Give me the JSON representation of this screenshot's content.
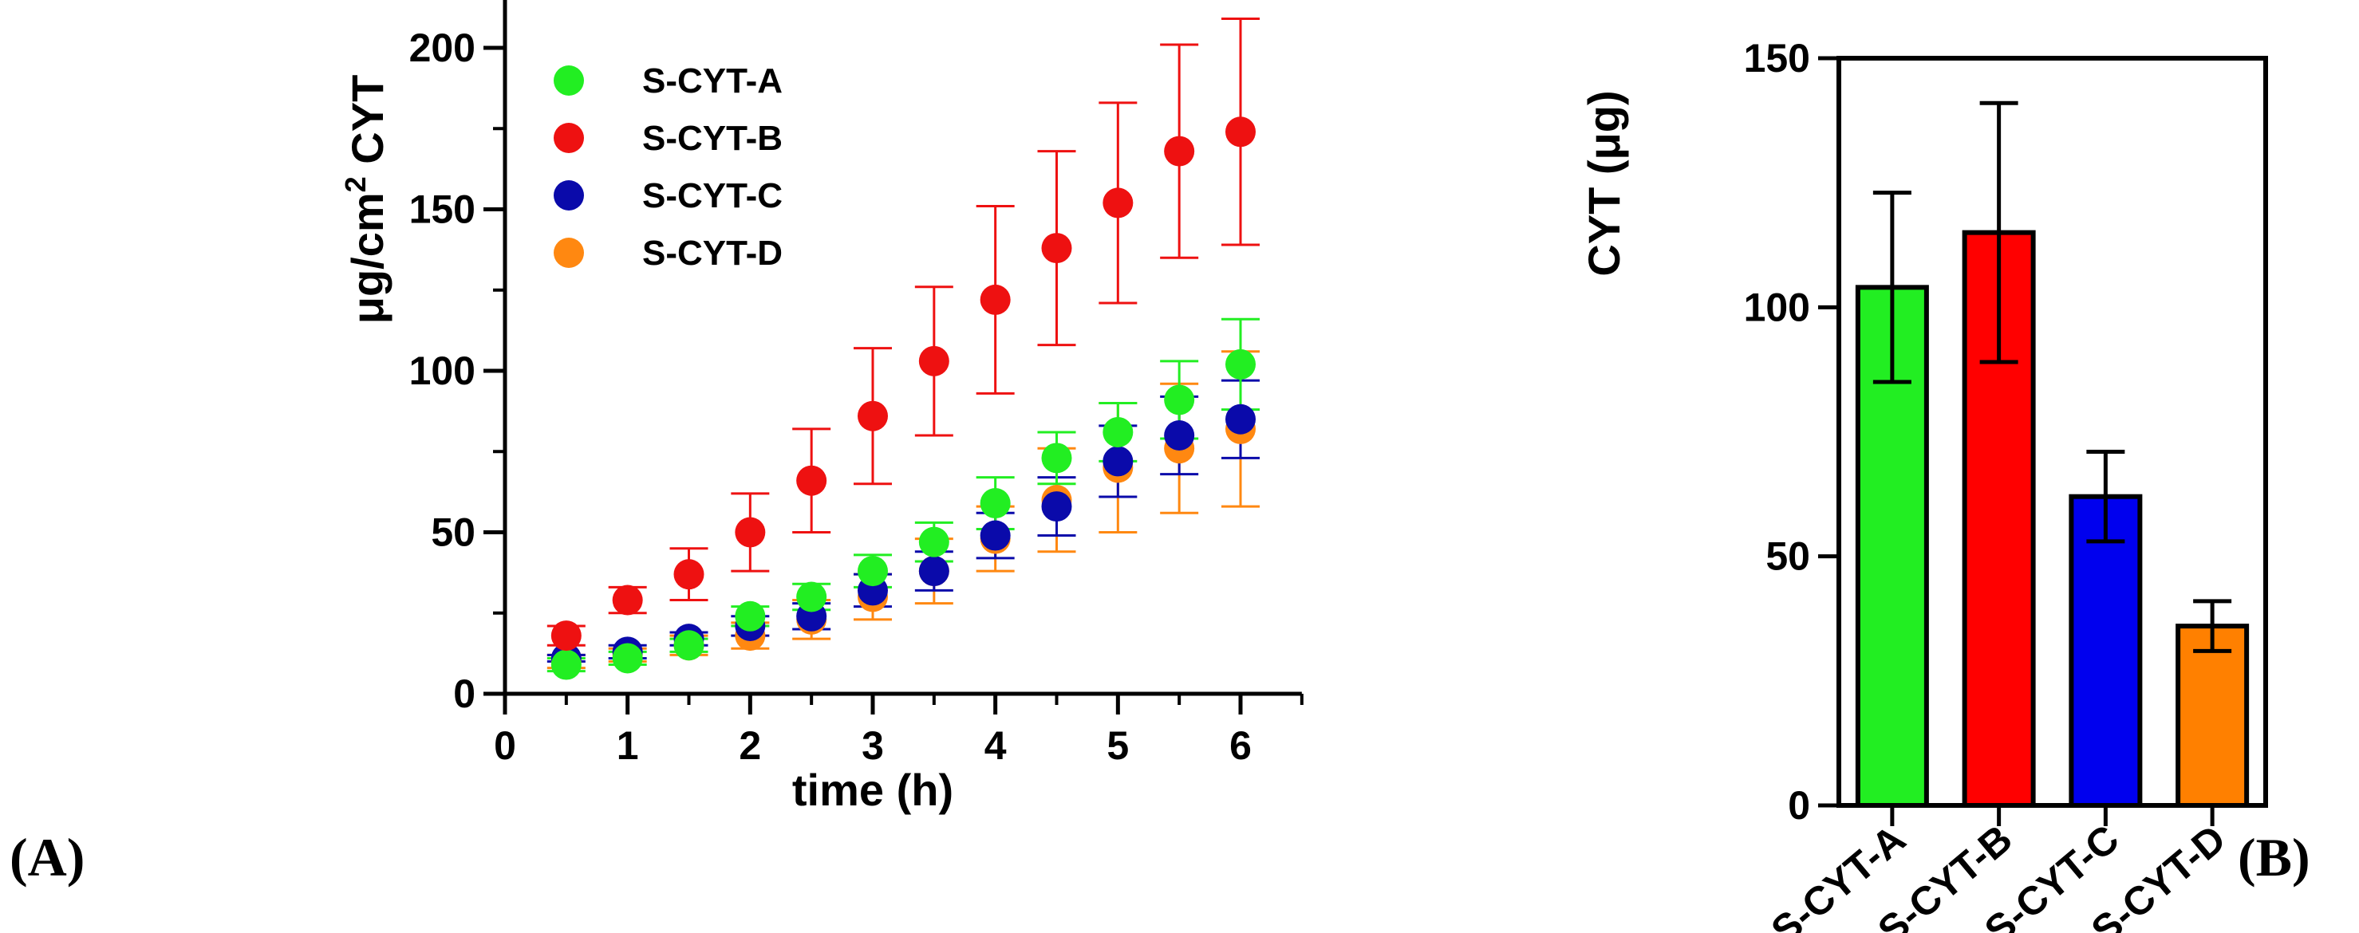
{
  "chart_data": [
    {
      "type": "scatter",
      "panel_label": "(A)",
      "xlabel": "time (h)",
      "ylabel_prefix": "μg/cm",
      "ylabel_sup": "2",
      "ylabel_suffix": " CYT",
      "xlim": [
        0,
        6.5
      ],
      "ylim": [
        0,
        220
      ],
      "xticks": [
        0,
        1,
        2,
        3,
        4,
        5,
        6
      ],
      "yticks": [
        0,
        50,
        100,
        150,
        200
      ],
      "legend_position": "top-left",
      "x": [
        0.5,
        1,
        1.5,
        2,
        2.5,
        3,
        3.5,
        4,
        4.5,
        5,
        5.5,
        6
      ],
      "series": [
        {
          "name": "S-CYT-A",
          "color": "#22ee22",
          "values": [
            9,
            11,
            15,
            24,
            30,
            38,
            47,
            59,
            73,
            81,
            91,
            102
          ],
          "errors": [
            2,
            2,
            2,
            3,
            4,
            5,
            6,
            8,
            8,
            9,
            12,
            14
          ]
        },
        {
          "name": "S-CYT-B",
          "color": "#ee1111",
          "values": [
            18,
            29,
            37,
            50,
            66,
            86,
            103,
            122,
            138,
            152,
            168,
            174
          ],
          "errors": [
            3,
            4,
            8,
            12,
            16,
            21,
            23,
            29,
            30,
            31,
            33,
            35
          ]
        },
        {
          "name": "S-CYT-C",
          "color": "#0a0aaa",
          "values": [
            11,
            13,
            17,
            21,
            24,
            32,
            38,
            49,
            58,
            72,
            80,
            85
          ],
          "errors": [
            1,
            2,
            2,
            3,
            4,
            5,
            6,
            7,
            9,
            11,
            12,
            12
          ]
        },
        {
          "name": "S-CYT-D",
          "color": "#ff8811",
          "values": [
            10,
            12,
            15,
            18,
            23,
            30,
            38,
            48,
            60,
            70,
            76,
            82
          ],
          "errors": [
            2,
            2,
            3,
            4,
            6,
            7,
            10,
            10,
            16,
            20,
            20,
            24
          ]
        }
      ]
    },
    {
      "type": "bar",
      "panel_label": "(B)",
      "ylabel": "CYT (μg)",
      "xlabel": "",
      "ylim": [
        0,
        150
      ],
      "yticks": [
        0,
        50,
        100,
        150
      ],
      "categories": [
        "S-CYT-A",
        "S-CYT-B",
        "S-CYT-C",
        "S-CYT-D"
      ],
      "values": [
        104,
        115,
        62,
        36
      ],
      "errors": [
        19,
        26,
        9,
        5
      ],
      "colors": [
        "#22ee22",
        "#ff0000",
        "#0000ee",
        "#ff8000"
      ]
    }
  ]
}
